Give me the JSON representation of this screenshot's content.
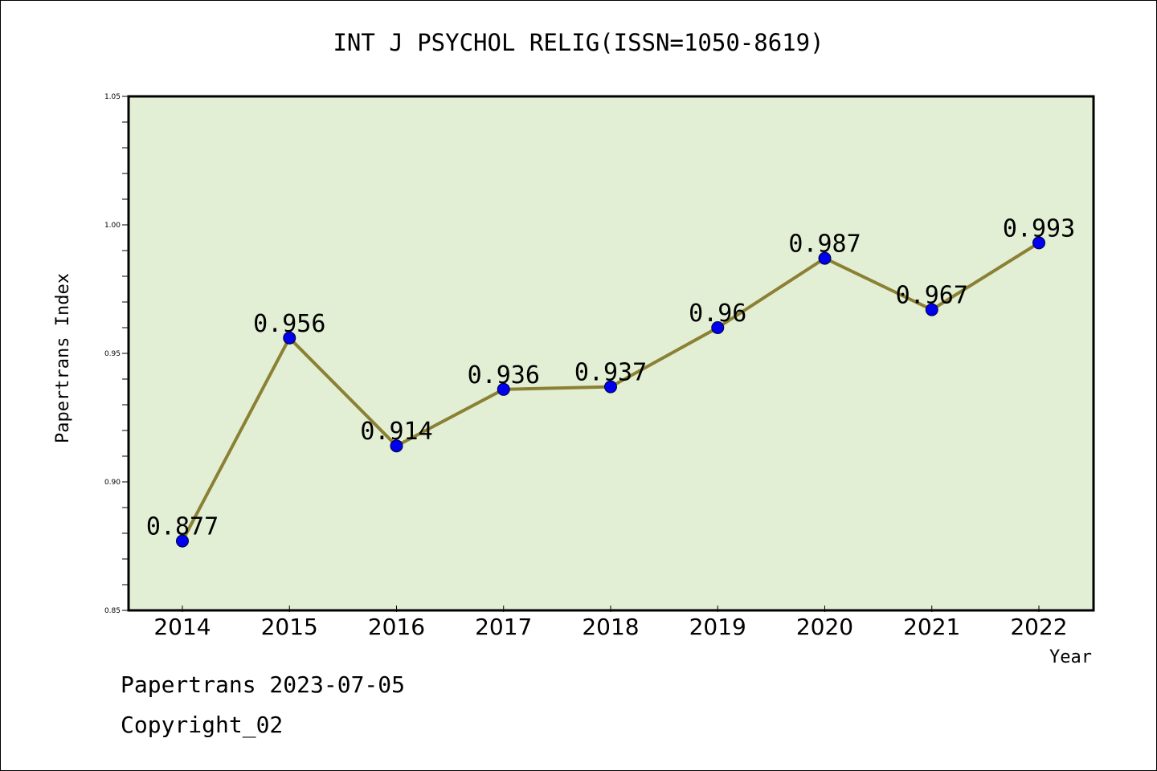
{
  "chart_data": {
    "type": "line",
    "title": "INT J PSYCHOL RELIG(ISSN=1050-8619)",
    "xlabel": "Year",
    "ylabel": "Papertrans Index",
    "categories": [
      "2014",
      "2015",
      "2016",
      "2017",
      "2018",
      "2019",
      "2020",
      "2021",
      "2022"
    ],
    "series": [
      {
        "values": [
          0.877,
          0.956,
          0.914,
          0.936,
          0.937,
          0.96,
          0.987,
          0.967,
          0.993
        ],
        "data_labels": [
          "0.877",
          "0.956",
          "0.914",
          "0.936",
          "0.937",
          "0.96",
          "0.987",
          "0.967",
          "0.993"
        ]
      }
    ],
    "ylim": [
      0.85,
      1.05
    ],
    "yticks": [
      "0.85",
      "0.90",
      "0.95",
      "1.00",
      "1.05"
    ],
    "grid": false,
    "colors": {
      "plot_background": "#e2efd4",
      "line": "#8b8034",
      "marker": "#0000ee"
    }
  },
  "footer": {
    "line1": "Papertrans 2023-07-05",
    "line2": "Copyright_02"
  }
}
